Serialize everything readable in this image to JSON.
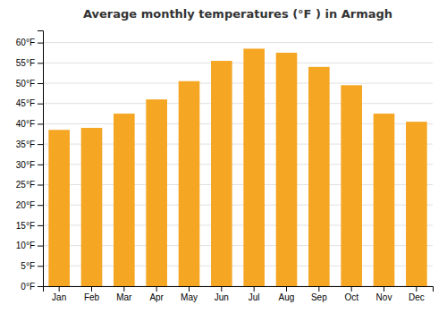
{
  "chart_data": {
    "type": "bar",
    "title": "Average monthly temperatures (°F ) in Armagh",
    "categories": [
      "Jan",
      "Feb",
      "Mar",
      "Apr",
      "May",
      "Jun",
      "Jul",
      "Aug",
      "Sep",
      "Oct",
      "Nov",
      "Dec"
    ],
    "values": [
      38.5,
      39.0,
      42.5,
      46.0,
      50.5,
      55.5,
      58.5,
      57.5,
      54.0,
      49.5,
      42.5,
      40.5
    ],
    "color": "#F5A623",
    "ylim": [
      0,
      63
    ],
    "yticks": [
      {
        "value": 0,
        "label": "0°F"
      },
      {
        "value": 5,
        "label": "5°F"
      },
      {
        "value": 10,
        "label": "10°F"
      },
      {
        "value": 15,
        "label": "15°F"
      },
      {
        "value": 20,
        "label": "20°F"
      },
      {
        "value": 25,
        "label": "25°F"
      },
      {
        "value": 30,
        "label": "30°F"
      },
      {
        "value": 35,
        "label": "35°F"
      },
      {
        "value": 40,
        "label": "40°F"
      },
      {
        "value": 45,
        "label": "45°F"
      },
      {
        "value": 50,
        "label": "50°F"
      },
      {
        "value": 55,
        "label": "55°F"
      },
      {
        "value": 60,
        "label": "60°F"
      }
    ],
    "grid": true
  }
}
